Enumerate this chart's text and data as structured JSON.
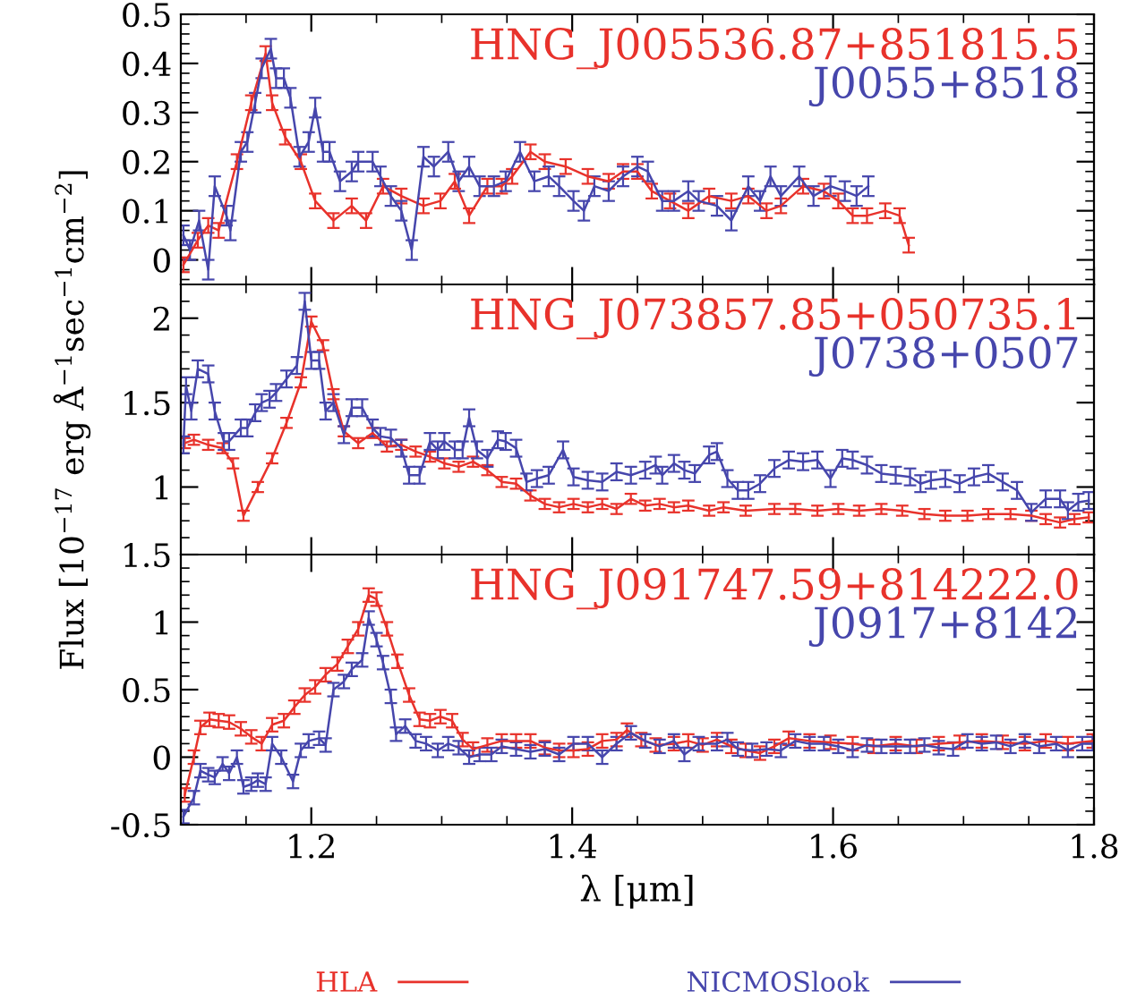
{
  "chart_data": [
    {
      "type": "line",
      "xlim": [
        1.1,
        1.8
      ],
      "xticks": [
        1.2,
        1.4,
        1.6,
        1.8
      ],
      "ylim": [
        -0.05,
        0.5
      ],
      "yticks": [
        0,
        0.1,
        0.2,
        0.3,
        0.4,
        0.5
      ],
      "tick_labels": "y",
      "grid": false,
      "legend": false,
      "marker": "none",
      "line_style": "solid",
      "annotations": [
        "HNG_J005536.87+851815.5",
        "J0055+8518"
      ],
      "series": [
        {
          "color": "#e8322b",
          "x": [
            1.102,
            1.113,
            1.121,
            1.129,
            1.143,
            1.154,
            1.165,
            1.17,
            1.18,
            1.192,
            1.203,
            1.217,
            1.231,
            1.242,
            1.255,
            1.269,
            1.286,
            1.299,
            1.31,
            1.321,
            1.335,
            1.346,
            1.354,
            1.368,
            1.379,
            1.395,
            1.412,
            1.428,
            1.439,
            1.45,
            1.461,
            1.475,
            1.489,
            1.505,
            1.522,
            1.535,
            1.549,
            1.56,
            1.577,
            1.593,
            1.604,
            1.615,
            1.626,
            1.64,
            1.651,
            1.658
          ],
          "values": [
            -0.01,
            0.04,
            0.07,
            0.06,
            0.2,
            0.32,
            0.42,
            0.32,
            0.25,
            0.2,
            0.12,
            0.08,
            0.11,
            0.08,
            0.15,
            0.13,
            0.11,
            0.12,
            0.16,
            0.09,
            0.15,
            0.15,
            0.17,
            0.22,
            0.2,
            0.19,
            0.17,
            0.16,
            0.18,
            0.18,
            0.14,
            0.12,
            0.1,
            0.13,
            0.12,
            0.13,
            0.1,
            0.11,
            0.15,
            0.14,
            0.12,
            0.09,
            0.09,
            0.1,
            0.09,
            0.03
          ],
          "errors": [
            0.015,
            0.015,
            0.015,
            0.015,
            0.015,
            0.015,
            0.015,
            0.015,
            0.015,
            0.015,
            0.015,
            0.015,
            0.015,
            0.015,
            0.015,
            0.015,
            0.015,
            0.015,
            0.015,
            0.015,
            0.015,
            0.015,
            0.015,
            0.015,
            0.015,
            0.015,
            0.015,
            0.015,
            0.015,
            0.015,
            0.015,
            0.015,
            0.015,
            0.015,
            0.015,
            0.015,
            0.015,
            0.015,
            0.015,
            0.015,
            0.015,
            0.015,
            0.015,
            0.015,
            0.015,
            0.015
          ]
        },
        {
          "color": "#4646ac",
          "x": [
            1.102,
            1.107,
            1.114,
            1.121,
            1.126,
            1.135,
            1.138,
            1.146,
            1.151,
            1.157,
            1.162,
            1.169,
            1.173,
            1.179,
            1.184,
            1.191,
            1.198,
            1.203,
            1.209,
            1.214,
            1.222,
            1.231,
            1.236,
            1.247,
            1.253,
            1.261,
            1.269,
            1.277,
            1.286,
            1.294,
            1.305,
            1.313,
            1.321,
            1.329,
            1.34,
            1.349,
            1.36,
            1.371,
            1.382,
            1.39,
            1.401,
            1.409,
            1.417,
            1.428,
            1.439,
            1.45,
            1.458,
            1.469,
            1.478,
            1.489,
            1.497,
            1.511,
            1.522,
            1.535,
            1.544,
            1.552,
            1.56,
            1.574,
            1.585,
            1.598,
            1.609,
            1.618,
            1.627
          ],
          "values": [
            0.05,
            0.02,
            0.08,
            -0.02,
            0.15,
            0.09,
            0.06,
            0.22,
            0.24,
            0.32,
            0.39,
            0.43,
            0.37,
            0.37,
            0.33,
            0.21,
            0.24,
            0.31,
            0.22,
            0.22,
            0.16,
            0.18,
            0.2,
            0.2,
            0.17,
            0.13,
            0.1,
            0.02,
            0.21,
            0.19,
            0.22,
            0.16,
            0.19,
            0.15,
            0.15,
            0.16,
            0.22,
            0.16,
            0.17,
            0.15,
            0.12,
            0.1,
            0.15,
            0.14,
            0.17,
            0.19,
            0.18,
            0.12,
            0.12,
            0.14,
            0.12,
            0.11,
            0.08,
            0.15,
            0.12,
            0.17,
            0.13,
            0.17,
            0.13,
            0.15,
            0.14,
            0.13,
            0.15
          ],
          "errors": [
            0.02,
            0.02,
            0.02,
            0.02,
            0.02,
            0.02,
            0.02,
            0.02,
            0.02,
            0.02,
            0.02,
            0.02,
            0.02,
            0.02,
            0.02,
            0.02,
            0.02,
            0.02,
            0.02,
            0.02,
            0.02,
            0.02,
            0.02,
            0.02,
            0.02,
            0.02,
            0.02,
            0.02,
            0.02,
            0.02,
            0.02,
            0.02,
            0.02,
            0.02,
            0.02,
            0.02,
            0.02,
            0.02,
            0.02,
            0.02,
            0.02,
            0.02,
            0.02,
            0.02,
            0.02,
            0.02,
            0.02,
            0.02,
            0.02,
            0.02,
            0.02,
            0.02,
            0.02,
            0.02,
            0.02,
            0.02,
            0.02,
            0.02,
            0.02,
            0.02,
            0.02,
            0.02,
            0.02
          ]
        }
      ]
    },
    {
      "type": "line",
      "xlim": [
        1.1,
        1.8
      ],
      "xticks": [
        1.2,
        1.4,
        1.6,
        1.8
      ],
      "ylim": [
        0.6,
        2.2
      ],
      "yticks": [
        1,
        1.5,
        2
      ],
      "tick_labels": "y",
      "grid": false,
      "legend": false,
      "marker": "none",
      "line_style": "solid",
      "ylabel": "Flux [10$^{−17}$ erg Å$^{−1}$sec$^{−1}$cm$^{−2}$]",
      "annotations": [
        "HNG_J073857.85+050735.1",
        "J0738+0507"
      ],
      "series": [
        {
          "color": "#e8322b",
          "x": [
            1.103,
            1.11,
            1.121,
            1.132,
            1.14,
            1.148,
            1.159,
            1.17,
            1.181,
            1.192,
            1.2,
            1.209,
            1.217,
            1.225,
            1.236,
            1.247,
            1.258,
            1.269,
            1.28,
            1.291,
            1.302,
            1.313,
            1.324,
            1.335,
            1.346,
            1.357,
            1.368,
            1.379,
            1.39,
            1.401,
            1.412,
            1.423,
            1.434,
            1.445,
            1.456,
            1.467,
            1.478,
            1.489,
            1.505,
            1.516,
            1.533,
            1.555,
            1.571,
            1.588,
            1.604,
            1.62,
            1.637,
            1.653,
            1.67,
            1.686,
            1.703,
            1.719,
            1.736,
            1.752,
            1.763,
            1.774,
            1.785,
            1.796
          ],
          "values": [
            1.26,
            1.28,
            1.25,
            1.23,
            1.14,
            0.83,
            1.0,
            1.17,
            1.38,
            1.62,
            1.98,
            1.84,
            1.55,
            1.33,
            1.26,
            1.32,
            1.24,
            1.25,
            1.21,
            1.18,
            1.14,
            1.12,
            1.15,
            1.1,
            1.03,
            1.02,
            0.95,
            0.9,
            0.88,
            0.9,
            0.88,
            0.9,
            0.87,
            0.93,
            0.89,
            0.9,
            0.88,
            0.89,
            0.86,
            0.88,
            0.86,
            0.87,
            0.87,
            0.86,
            0.87,
            0.86,
            0.87,
            0.86,
            0.84,
            0.83,
            0.83,
            0.84,
            0.84,
            0.83,
            0.81,
            0.79,
            0.81,
            0.82
          ],
          "errors": [
            0.03,
            0.03,
            0.03,
            0.03,
            0.03,
            0.03,
            0.03,
            0.03,
            0.03,
            0.03,
            0.03,
            0.03,
            0.03,
            0.03,
            0.03,
            0.03,
            0.03,
            0.03,
            0.03,
            0.03,
            0.03,
            0.03,
            0.03,
            0.03,
            0.03,
            0.03,
            0.03,
            0.03,
            0.03,
            0.03,
            0.03,
            0.03,
            0.03,
            0.03,
            0.03,
            0.03,
            0.03,
            0.03,
            0.03,
            0.03,
            0.03,
            0.03,
            0.03,
            0.03,
            0.03,
            0.03,
            0.03,
            0.03,
            0.03,
            0.03,
            0.03,
            0.03,
            0.03,
            0.03,
            0.03,
            0.03,
            0.03,
            0.03
          ]
        },
        {
          "color": "#4646ac",
          "x": [
            1.102,
            1.104,
            1.108,
            1.113,
            1.121,
            1.126,
            1.133,
            1.137,
            1.146,
            1.151,
            1.157,
            1.162,
            1.168,
            1.173,
            1.181,
            1.189,
            1.195,
            1.2,
            1.206,
            1.211,
            1.217,
            1.225,
            1.231,
            1.239,
            1.247,
            1.253,
            1.261,
            1.269,
            1.275,
            1.283,
            1.291,
            1.297,
            1.302,
            1.31,
            1.316,
            1.321,
            1.327,
            1.335,
            1.343,
            1.349,
            1.357,
            1.365,
            1.373,
            1.382,
            1.393,
            1.401,
            1.412,
            1.423,
            1.434,
            1.445,
            1.456,
            1.464,
            1.469,
            1.478,
            1.486,
            1.494,
            1.505,
            1.511,
            1.519,
            1.527,
            1.535,
            1.544,
            1.555,
            1.566,
            1.577,
            1.588,
            1.598,
            1.607,
            1.615,
            1.626,
            1.637,
            1.648,
            1.659,
            1.667,
            1.675,
            1.686,
            1.697,
            1.708,
            1.719,
            1.73,
            1.741,
            1.752,
            1.763,
            1.774,
            1.78,
            1.788,
            1.796
          ],
          "values": [
            1.25,
            1.6,
            1.45,
            1.7,
            1.67,
            1.45,
            1.27,
            1.27,
            1.35,
            1.35,
            1.44,
            1.5,
            1.52,
            1.56,
            1.64,
            1.72,
            2.1,
            1.75,
            1.75,
            1.45,
            1.5,
            1.31,
            1.47,
            1.47,
            1.35,
            1.3,
            1.29,
            1.23,
            1.07,
            1.07,
            1.27,
            1.22,
            1.27,
            1.22,
            1.22,
            1.41,
            1.22,
            1.17,
            1.28,
            1.27,
            1.23,
            1.03,
            1.05,
            1.07,
            1.22,
            1.06,
            1.04,
            1.03,
            1.09,
            1.07,
            1.1,
            1.13,
            1.07,
            1.14,
            1.1,
            1.08,
            1.19,
            1.21,
            1.05,
            0.98,
            0.98,
            1.02,
            1.11,
            1.16,
            1.15,
            1.16,
            1.05,
            1.17,
            1.16,
            1.13,
            1.08,
            1.07,
            1.06,
            1.02,
            1.04,
            1.05,
            1.02,
            1.06,
            1.08,
            1.03,
            0.98,
            0.85,
            0.93,
            0.93,
            0.86,
            0.91,
            0.92
          ],
          "errors": [
            0.05,
            0.05,
            0.05,
            0.05,
            0.05,
            0.05,
            0.05,
            0.05,
            0.05,
            0.05,
            0.05,
            0.05,
            0.05,
            0.05,
            0.05,
            0.05,
            0.05,
            0.05,
            0.05,
            0.05,
            0.05,
            0.05,
            0.05,
            0.05,
            0.05,
            0.05,
            0.05,
            0.05,
            0.05,
            0.05,
            0.05,
            0.05,
            0.05,
            0.05,
            0.05,
            0.05,
            0.05,
            0.05,
            0.05,
            0.05,
            0.05,
            0.05,
            0.05,
            0.05,
            0.05,
            0.05,
            0.05,
            0.05,
            0.05,
            0.05,
            0.05,
            0.05,
            0.05,
            0.05,
            0.05,
            0.05,
            0.05,
            0.05,
            0.05,
            0.05,
            0.05,
            0.05,
            0.05,
            0.05,
            0.05,
            0.05,
            0.05,
            0.05,
            0.05,
            0.05,
            0.05,
            0.05,
            0.05,
            0.05,
            0.05,
            0.05,
            0.05,
            0.05,
            0.05,
            0.05,
            0.05,
            0.05,
            0.05,
            0.05,
            0.05,
            0.05,
            0.05
          ]
        }
      ]
    },
    {
      "type": "line",
      "xlim": [
        1.1,
        1.8
      ],
      "xticks": [
        1.2,
        1.4,
        1.6,
        1.8
      ],
      "ylim": [
        -0.5,
        1.5
      ],
      "yticks": [
        -0.5,
        0,
        0.5,
        1,
        1.5
      ],
      "grid": false,
      "legend": "bottom",
      "marker": "none",
      "line_style": "solid",
      "xlabel": "λ [μm]",
      "annotations": [
        "HNG_J091747.59+814222.0",
        "J0917+8142"
      ],
      "series": [
        {
          "name": "HLA",
          "color": "#e8322b",
          "x": [
            1.103,
            1.11,
            1.115,
            1.122,
            1.129,
            1.137,
            1.146,
            1.154,
            1.162,
            1.17,
            1.179,
            1.187,
            1.195,
            1.203,
            1.211,
            1.22,
            1.228,
            1.236,
            1.244,
            1.25,
            1.258,
            1.266,
            1.275,
            1.283,
            1.291,
            1.299,
            1.308,
            1.316,
            1.324,
            1.335,
            1.346,
            1.357,
            1.368,
            1.379,
            1.39,
            1.401,
            1.412,
            1.423,
            1.434,
            1.442,
            1.453,
            1.464,
            1.478,
            1.489,
            1.5,
            1.511,
            1.522,
            1.533,
            1.544,
            1.555,
            1.566,
            1.582,
            1.598,
            1.615,
            1.631,
            1.648,
            1.664,
            1.681,
            1.697,
            1.714,
            1.73,
            1.747,
            1.763,
            1.78,
            1.799
          ],
          "values": [
            -0.28,
            0.0,
            0.22,
            0.28,
            0.27,
            0.26,
            0.21,
            0.15,
            0.1,
            0.24,
            0.27,
            0.37,
            0.46,
            0.52,
            0.61,
            0.69,
            0.82,
            0.95,
            1.2,
            1.17,
            0.95,
            0.71,
            0.46,
            0.28,
            0.27,
            0.3,
            0.27,
            0.13,
            0.06,
            0.09,
            0.12,
            0.12,
            0.12,
            0.07,
            0.05,
            0.05,
            0.06,
            0.12,
            0.13,
            0.2,
            0.13,
            0.09,
            0.1,
            0.12,
            0.09,
            0.13,
            0.08,
            0.05,
            0.03,
            0.08,
            0.14,
            0.12,
            0.11,
            0.1,
            0.08,
            0.1,
            0.08,
            0.1,
            0.11,
            0.12,
            0.11,
            0.1,
            0.12,
            0.1,
            0.12
          ],
          "errors": [
            0.05,
            0.05,
            0.05,
            0.05,
            0.05,
            0.05,
            0.05,
            0.05,
            0.05,
            0.05,
            0.05,
            0.05,
            0.05,
            0.05,
            0.05,
            0.05,
            0.05,
            0.05,
            0.05,
            0.05,
            0.05,
            0.05,
            0.05,
            0.05,
            0.05,
            0.05,
            0.05,
            0.05,
            0.05,
            0.05,
            0.05,
            0.05,
            0.05,
            0.05,
            0.05,
            0.05,
            0.05,
            0.05,
            0.05,
            0.05,
            0.05,
            0.05,
            0.05,
            0.05,
            0.05,
            0.05,
            0.05,
            0.05,
            0.05,
            0.05,
            0.05,
            0.05,
            0.05,
            0.05,
            0.05,
            0.05,
            0.05,
            0.05,
            0.05,
            0.05,
            0.05,
            0.05,
            0.05,
            0.05,
            0.05
          ]
        },
        {
          "name": "NICMOSlook",
          "color": "#4646ac",
          "x": [
            1.102,
            1.11,
            1.115,
            1.121,
            1.126,
            1.132,
            1.137,
            1.143,
            1.148,
            1.154,
            1.159,
            1.165,
            1.17,
            1.177,
            1.186,
            1.192,
            1.198,
            1.206,
            1.211,
            1.217,
            1.225,
            1.231,
            1.239,
            1.244,
            1.25,
            1.255,
            1.261,
            1.265,
            1.272,
            1.28,
            1.288,
            1.297,
            1.305,
            1.313,
            1.321,
            1.329,
            1.338,
            1.346,
            1.357,
            1.368,
            1.379,
            1.39,
            1.401,
            1.412,
            1.423,
            1.434,
            1.445,
            1.456,
            1.467,
            1.478,
            1.486,
            1.497,
            1.511,
            1.519,
            1.527,
            1.538,
            1.549,
            1.56,
            1.571,
            1.582,
            1.593,
            1.604,
            1.615,
            1.626,
            1.637,
            1.648,
            1.659,
            1.67,
            1.681,
            1.692,
            1.703,
            1.714,
            1.725,
            1.736,
            1.747,
            1.758,
            1.771,
            1.78,
            1.791,
            1.799
          ],
          "values": [
            -0.44,
            -0.3,
            -0.1,
            -0.13,
            -0.15,
            -0.05,
            -0.12,
            0.0,
            -0.22,
            -0.2,
            -0.17,
            -0.2,
            0.1,
            0.0,
            -0.18,
            0.05,
            0.12,
            0.14,
            0.09,
            0.5,
            0.56,
            0.65,
            0.72,
            1.03,
            0.87,
            0.7,
            0.45,
            0.17,
            0.23,
            0.12,
            0.1,
            0.05,
            0.1,
            0.07,
            0.0,
            0.02,
            0.02,
            0.08,
            0.06,
            0.04,
            0.06,
            0.02,
            0.1,
            0.1,
            0.0,
            0.1,
            0.18,
            0.12,
            0.08,
            0.12,
            0.02,
            0.1,
            0.1,
            0.13,
            0.06,
            0.05,
            0.06,
            0.05,
            0.12,
            0.1,
            0.1,
            0.08,
            0.05,
            0.09,
            0.08,
            0.08,
            0.08,
            0.09,
            0.07,
            0.06,
            0.12,
            0.1,
            0.11,
            0.08,
            0.12,
            0.08,
            0.1,
            0.05,
            0.1,
            0.1
          ],
          "errors": [
            0.05,
            0.05,
            0.05,
            0.05,
            0.05,
            0.05,
            0.05,
            0.05,
            0.05,
            0.05,
            0.05,
            0.05,
            0.05,
            0.05,
            0.05,
            0.05,
            0.05,
            0.05,
            0.05,
            0.05,
            0.05,
            0.05,
            0.05,
            0.05,
            0.05,
            0.05,
            0.05,
            0.05,
            0.05,
            0.05,
            0.05,
            0.05,
            0.05,
            0.05,
            0.05,
            0.05,
            0.05,
            0.05,
            0.05,
            0.05,
            0.05,
            0.05,
            0.05,
            0.05,
            0.05,
            0.05,
            0.05,
            0.05,
            0.05,
            0.05,
            0.05,
            0.05,
            0.05,
            0.05,
            0.05,
            0.05,
            0.05,
            0.05,
            0.05,
            0.05,
            0.05,
            0.05,
            0.05,
            0.05,
            0.05,
            0.05,
            0.05,
            0.05,
            0.05,
            0.05,
            0.05,
            0.05,
            0.05,
            0.05,
            0.05,
            0.05,
            0.05,
            0.05,
            0.05,
            0.05
          ]
        }
      ]
    }
  ]
}
